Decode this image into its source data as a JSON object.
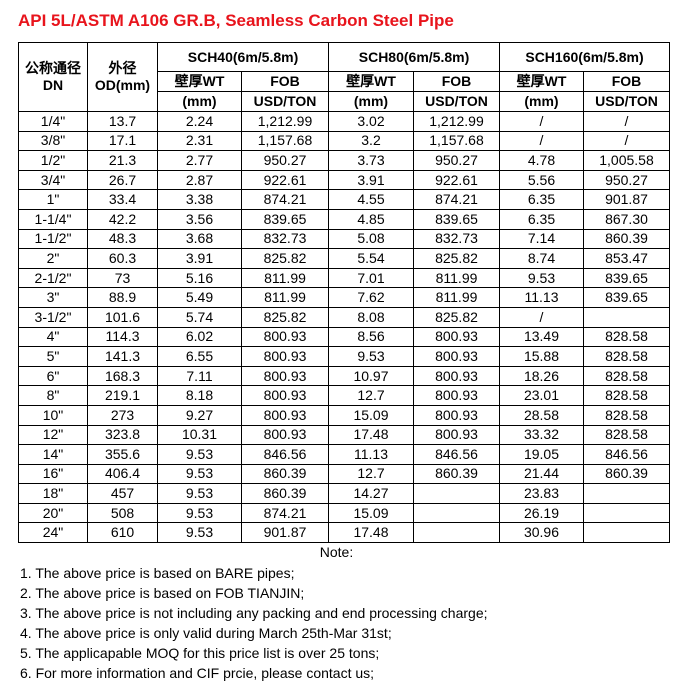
{
  "title": "API 5L/ASTM A106 GR.B, Seamless Carbon Steel Pipe",
  "header": {
    "dn_cn": "公称通径",
    "dn": "DN",
    "od_cn": "外径",
    "od": "OD(mm)",
    "groups": [
      "SCH40(6m/5.8m)",
      "SCH80(6m/5.8m)",
      "SCH160(6m/5.8m)"
    ],
    "wt_label": "壁厚WT",
    "fob_label": "FOB",
    "wt_unit": "(mm)",
    "fob_unit": "USD/TON"
  },
  "rows": [
    [
      "1/4\"",
      "13.7",
      "2.24",
      "1,212.99",
      "3.02",
      "1,212.99",
      "/",
      "/"
    ],
    [
      "3/8\"",
      "17.1",
      "2.31",
      "1,157.68",
      "3.2",
      "1,157.68",
      "/",
      "/"
    ],
    [
      "1/2\"",
      "21.3",
      "2.77",
      "950.27",
      "3.73",
      "950.27",
      "4.78",
      "1,005.58"
    ],
    [
      "3/4\"",
      "26.7",
      "2.87",
      "922.61",
      "3.91",
      "922.61",
      "5.56",
      "950.27"
    ],
    [
      "1\"",
      "33.4",
      "3.38",
      "874.21",
      "4.55",
      "874.21",
      "6.35",
      "901.87"
    ],
    [
      "1-1/4\"",
      "42.2",
      "3.56",
      "839.65",
      "4.85",
      "839.65",
      "6.35",
      "867.30"
    ],
    [
      "1-1/2\"",
      "48.3",
      "3.68",
      "832.73",
      "5.08",
      "832.73",
      "7.14",
      "860.39"
    ],
    [
      "2\"",
      "60.3",
      "3.91",
      "825.82",
      "5.54",
      "825.82",
      "8.74",
      "853.47"
    ],
    [
      "2-1/2\"",
      "73",
      "5.16",
      "811.99",
      "7.01",
      "811.99",
      "9.53",
      "839.65"
    ],
    [
      "3\"",
      "88.9",
      "5.49",
      "811.99",
      "7.62",
      "811.99",
      "11.13",
      "839.65"
    ],
    [
      "3-1/2\"",
      "101.6",
      "5.74",
      "825.82",
      "8.08",
      "825.82",
      "/",
      ""
    ],
    [
      "4\"",
      "114.3",
      "6.02",
      "800.93",
      "8.56",
      "800.93",
      "13.49",
      "828.58"
    ],
    [
      "5\"",
      "141.3",
      "6.55",
      "800.93",
      "9.53",
      "800.93",
      "15.88",
      "828.58"
    ],
    [
      "6\"",
      "168.3",
      "7.11",
      "800.93",
      "10.97",
      "800.93",
      "18.26",
      "828.58"
    ],
    [
      "8\"",
      "219.1",
      "8.18",
      "800.93",
      "12.7",
      "800.93",
      "23.01",
      "828.58"
    ],
    [
      "10\"",
      "273",
      "9.27",
      "800.93",
      "15.09",
      "800.93",
      "28.58",
      "828.58"
    ],
    [
      "12\"",
      "323.8",
      "10.31",
      "800.93",
      "17.48",
      "800.93",
      "33.32",
      "828.58"
    ],
    [
      "14\"",
      "355.6",
      "9.53",
      "846.56",
      "11.13",
      "846.56",
      "19.05",
      "846.56"
    ],
    [
      "16\"",
      "406.4",
      "9.53",
      "860.39",
      "12.7",
      "860.39",
      "21.44",
      "860.39"
    ],
    [
      "18\"",
      "457",
      "9.53",
      "860.39",
      "14.27",
      "",
      "23.83",
      ""
    ],
    [
      "20\"",
      "508",
      "9.53",
      "874.21",
      "15.09",
      "",
      "26.19",
      ""
    ],
    [
      "24\"",
      "610",
      "9.53",
      "901.87",
      "17.48",
      "",
      "30.96",
      ""
    ]
  ],
  "note_title": "Note:",
  "notes": [
    "1. The above price is based on BARE pipes;",
    "2. The above price is based on FOB TIANJIN;",
    "3. The above price is not including any packing and end processing charge;",
    "4. The above price is only valid during March 25th-Mar 31st;",
    "5. The applicapable MOQ for this price list is over 25 tons;",
    "6. For more information and CIF prcie, please contact us;"
  ],
  "colors": {
    "title": "#e8141c"
  }
}
